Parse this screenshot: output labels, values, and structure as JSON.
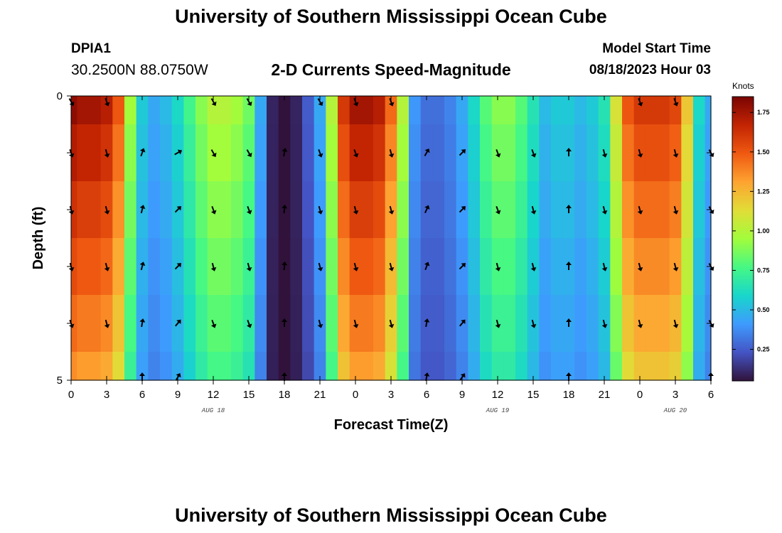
{
  "header": {
    "title": "University of Southern Mississippi Ocean Cube",
    "station_id": "DPIA1",
    "coordinates": "30.2500N  88.0750W",
    "subtitle": "2-D Currents Speed-Magnitude",
    "model_start_label": "Model Start Time",
    "model_start_value": "08/18/2023 Hour 03"
  },
  "footer": {
    "title": "University of Southern Mississippi Ocean Cube"
  },
  "chart_data": {
    "type": "heatmap",
    "title": "2-D Currents Speed-Magnitude",
    "xlabel": "Forecast Time(Z)",
    "ylabel": "Depth (ft)",
    "x_tick_labels": [
      "0",
      "3",
      "6",
      "9",
      "12",
      "15",
      "18",
      "21",
      "0",
      "3",
      "6",
      "9",
      "12",
      "15",
      "18",
      "21",
      "0",
      "3",
      "6"
    ],
    "x_hours": [
      0,
      3,
      6,
      9,
      12,
      15,
      18,
      21,
      24,
      27,
      30,
      33,
      36,
      39,
      42,
      45,
      48,
      51,
      54
    ],
    "date_labels": [
      {
        "label": "AUG 18",
        "hour": 12
      },
      {
        "label": "AUG 19",
        "hour": 36
      },
      {
        "label": "AUG 20",
        "hour": 51
      }
    ],
    "y_tick_labels": [
      "0",
      "5"
    ],
    "ylim": [
      0,
      5
    ],
    "xlim": [
      0,
      54
    ],
    "depth_layers": [
      0,
      1,
      2,
      3,
      4,
      5
    ],
    "colorbar": {
      "label": "Knots",
      "ticks": [
        "0.25",
        "0.50",
        "0.75",
        "1.00",
        "1.25",
        "1.50",
        "1.75"
      ],
      "tick_values": [
        0.25,
        0.5,
        0.75,
        1.0,
        1.25,
        1.5,
        1.75
      ],
      "range": [
        0.05,
        1.85
      ]
    },
    "speed_profile": {
      "hours": [
        0,
        1,
        2,
        3,
        4,
        5,
        6,
        7,
        8,
        9,
        10,
        11,
        12,
        13,
        14,
        15,
        16,
        17,
        18,
        19,
        20,
        21,
        22,
        23,
        24,
        25,
        26,
        27,
        28,
        29,
        30,
        31,
        32,
        33,
        34,
        35,
        36,
        37,
        38,
        39,
        40,
        41,
        42,
        43,
        44,
        45,
        46,
        47,
        48,
        49,
        50,
        51,
        52,
        53,
        54
      ],
      "surface": [
        1.8,
        1.75,
        1.75,
        1.7,
        1.5,
        0.95,
        0.55,
        0.45,
        0.5,
        0.6,
        0.75,
        0.9,
        1.0,
        1.0,
        0.95,
        0.85,
        0.45,
        0.1,
        0.05,
        0.1,
        0.25,
        0.45,
        1.0,
        1.6,
        1.75,
        1.75,
        1.7,
        1.45,
        1.0,
        0.4,
        0.3,
        0.3,
        0.35,
        0.45,
        0.6,
        0.8,
        0.9,
        0.9,
        0.8,
        0.65,
        0.5,
        0.55,
        0.55,
        0.5,
        0.55,
        0.65,
        1.1,
        1.5,
        1.6,
        1.6,
        1.6,
        1.55,
        1.2,
        0.6,
        0.45
      ],
      "depth_factor": [
        1.0,
        0.95,
        0.9,
        0.85,
        0.8,
        0.75
      ]
    },
    "arrows": {
      "hours": [
        0,
        3,
        6,
        9,
        12,
        15,
        18,
        21,
        24,
        27,
        30,
        33,
        36,
        39,
        42,
        45,
        48,
        51,
        54
      ],
      "rows_depth": [
        0.1,
        1.0,
        2.0,
        3.0,
        4.0,
        4.95
      ],
      "directions_deg": [
        [
          150,
          160,
          null,
          null,
          150,
          150,
          null,
          150,
          160,
          160,
          null,
          null,
          null,
          null,
          null,
          null,
          160,
          160,
          null
        ],
        [
          160,
          165,
          20,
          60,
          150,
          150,
          10,
          160,
          160,
          165,
          30,
          45,
          160,
          160,
          0,
          165,
          165,
          165,
          150
        ],
        [
          165,
          165,
          15,
          45,
          160,
          160,
          5,
          165,
          165,
          165,
          25,
          45,
          160,
          165,
          0,
          165,
          165,
          165,
          150
        ],
        [
          165,
          165,
          15,
          45,
          165,
          165,
          5,
          165,
          165,
          165,
          20,
          45,
          165,
          165,
          0,
          165,
          165,
          165,
          150
        ],
        [
          160,
          165,
          10,
          40,
          160,
          160,
          0,
          165,
          165,
          165,
          10,
          40,
          165,
          165,
          0,
          165,
          165,
          165,
          150
        ],
        [
          null,
          null,
          0,
          30,
          null,
          null,
          0,
          null,
          null,
          null,
          10,
          35,
          null,
          null,
          0,
          null,
          null,
          null,
          0
        ]
      ]
    }
  }
}
